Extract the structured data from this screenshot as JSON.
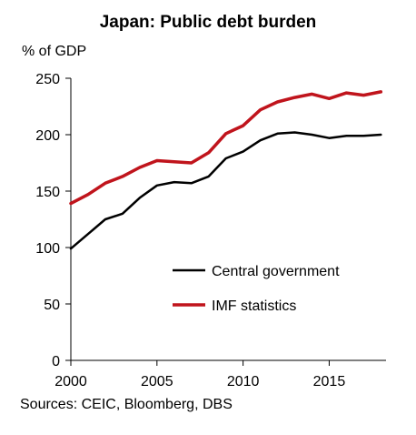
{
  "chart_data": {
    "type": "line",
    "title": "Japan: Public debt burden",
    "ylabel": "% of GDP",
    "source": "Sources: CEIC, Bloomberg, DBS",
    "xlim": [
      2000,
      2018.3
    ],
    "ylim": [
      0,
      250
    ],
    "x_ticks": [
      2000,
      2005,
      2010,
      2015
    ],
    "y_ticks": [
      0,
      50,
      100,
      150,
      200,
      250
    ],
    "legend_position": "bottom-right",
    "x": [
      2000,
      2001,
      2002,
      2003,
      2004,
      2005,
      2006,
      2007,
      2008,
      2009,
      2010,
      2011,
      2012,
      2013,
      2014,
      2015,
      2016,
      2017,
      2018
    ],
    "series": [
      {
        "name": "Central government",
        "color": "#000000",
        "values": [
          99,
          112,
          125,
          130,
          144,
          155,
          158,
          157,
          163,
          179,
          185,
          195,
          201,
          202,
          200,
          197,
          199,
          199,
          200
        ]
      },
      {
        "name": "IMF statistics",
        "color": "#c0141c",
        "values": [
          139,
          147,
          157,
          163,
          171,
          177,
          176,
          175,
          184,
          201,
          208,
          222,
          229,
          233,
          236,
          232,
          237,
          235,
          238
        ]
      }
    ]
  }
}
